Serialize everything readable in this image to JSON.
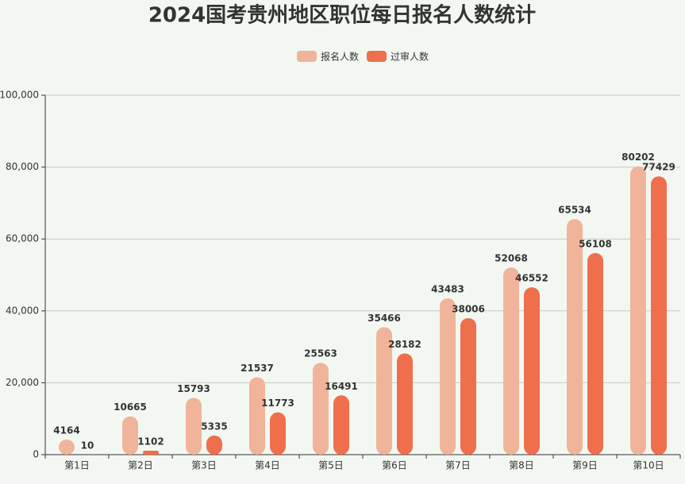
{
  "chart_data": {
    "type": "bar",
    "title": "2024国考贵州地区职位每日报名人数统计",
    "categories": [
      "第1日",
      "第2日",
      "第3日",
      "第4日",
      "第5日",
      "第6日",
      "第7日",
      "第8日",
      "第9日",
      "第10日"
    ],
    "series": [
      {
        "name": "报名人数",
        "color": "#f0b49a",
        "values": [
          4164,
          10665,
          15793,
          21537,
          25563,
          35466,
          43483,
          52068,
          65534,
          80202
        ]
      },
      {
        "name": "过审人数",
        "color": "#ef6f4d",
        "values": [
          10,
          1102,
          5335,
          11773,
          16491,
          28182,
          38006,
          46552,
          56108,
          77429
        ]
      }
    ],
    "ylim": [
      0,
      100000
    ],
    "yticks": [
      0,
      {
        "value": 20000,
        "label": "20,000"
      },
      {
        "value": 40000,
        "label": "40,000"
      },
      {
        "value": 60000,
        "label": "60,000"
      },
      {
        "value": 80000,
        "label": "80,000"
      },
      {
        "value": 100000,
        "label": "100,000"
      }
    ],
    "grid": true
  }
}
